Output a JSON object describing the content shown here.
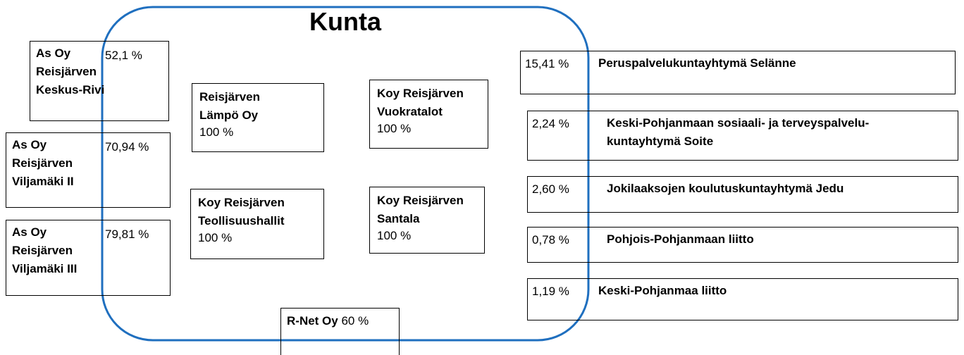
{
  "title": "Kunta",
  "left": [
    {
      "name": [
        "As Oy",
        "Reisjärven",
        "Keskus-Rivi"
      ],
      "share": "52,1 %"
    },
    {
      "name": [
        "As Oy",
        "Reisjärven",
        "Viljamäki II"
      ],
      "share": "70,94 %"
    },
    {
      "name": [
        "As Oy",
        "Reisjärven",
        "Viljamäki III"
      ],
      "share": "79,81 %"
    }
  ],
  "center": [
    {
      "name": [
        "Reisjärven",
        "Lämpö Oy"
      ],
      "share": "100 %"
    },
    {
      "name": [
        "Koy Reisjärven",
        "Vuokratalot"
      ],
      "share": "100 %"
    },
    {
      "name": [
        "Koy  Reisjärven",
        "Teollisuushallit"
      ],
      "share": "100 %"
    },
    {
      "name": [
        "Koy Reisjärven",
        "Santala"
      ],
      "share": "100 %"
    }
  ],
  "rnet": {
    "name": "R-Net Oy",
    "share": "60 %"
  },
  "right": [
    {
      "share": "15,41 %",
      "name": [
        "Peruspalvelukuntayhtymä Selänne"
      ]
    },
    {
      "share": "2,24 %",
      "name": [
        "Keski-Pohjanmaan sosiaali- ja terveyspalvelu-",
        "kuntayhtymä Soite"
      ]
    },
    {
      "share": "2,60 %",
      "name": [
        "Jokilaaksojen koulutuskuntayhtymä Jedu"
      ]
    },
    {
      "share": "0,78 %",
      "name": [
        "Pohjois-Pohjanmaan liitto"
      ]
    },
    {
      "share": "1,19 %",
      "name": [
        "Keski-Pohjanmaa liitto"
      ]
    }
  ]
}
